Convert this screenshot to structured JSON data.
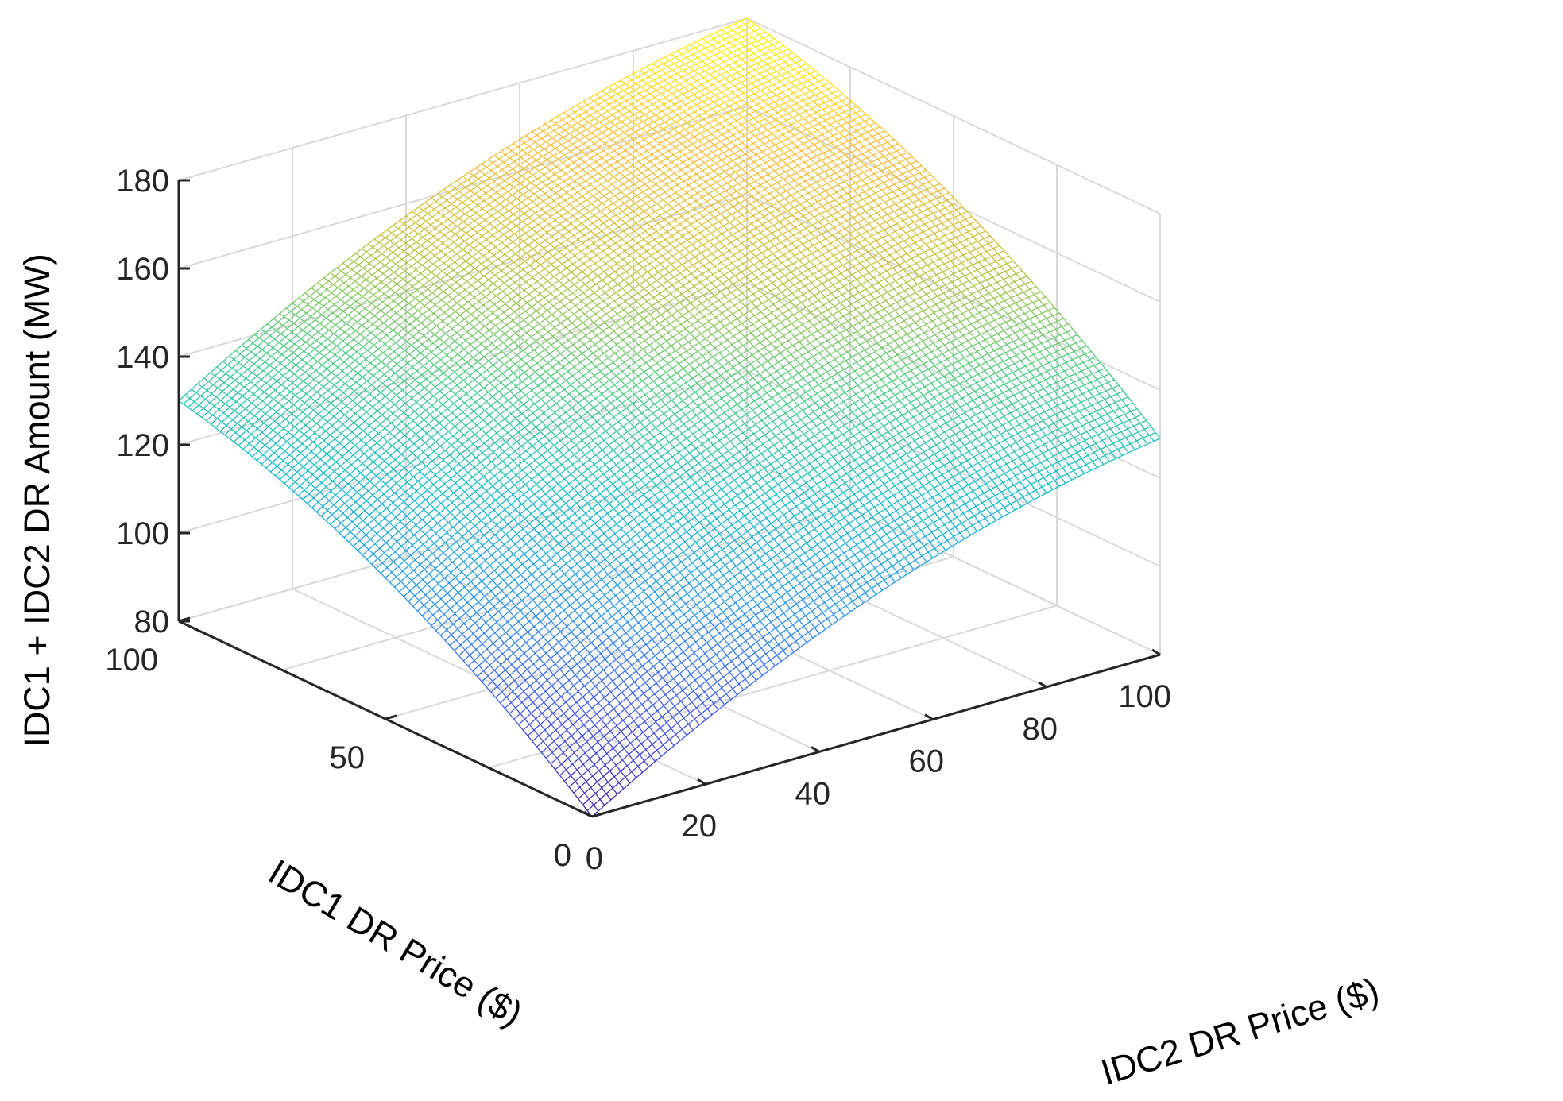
{
  "chart_data": {
    "type": "surface",
    "zlabel": "IDC1 + IDC2 DR Amount (MW)",
    "xlabel": "IDC1 DR Price ($)",
    "ylabel": "IDC2 DR Price ($)",
    "xlim": [
      0,
      100
    ],
    "ylim": [
      0,
      100
    ],
    "zlim": [
      80,
      180
    ],
    "x_ticks": [
      "0",
      "50",
      "100"
    ],
    "y_ticks": [
      "0",
      "20",
      "40",
      "60",
      "80",
      "100"
    ],
    "z_ticks": [
      "80",
      "100",
      "120",
      "140",
      "160",
      "180"
    ],
    "grid": true,
    "colormap": "parula",
    "corner_values": [
      {
        "x": 0,
        "y": 0,
        "z": 80
      },
      {
        "x": 0,
        "y": 100,
        "z": 129
      },
      {
        "x": 100,
        "y": 0,
        "z": 130
      },
      {
        "x": 100,
        "y": 100,
        "z": 180
      }
    ],
    "edge_values": [
      {
        "x": 0,
        "y": 50,
        "z": 112
      },
      {
        "x": 50,
        "y": 0,
        "z": 112
      },
      {
        "x": 100,
        "y": 50,
        "z": 163
      },
      {
        "x": 50,
        "y": 100,
        "z": 162
      }
    ]
  }
}
